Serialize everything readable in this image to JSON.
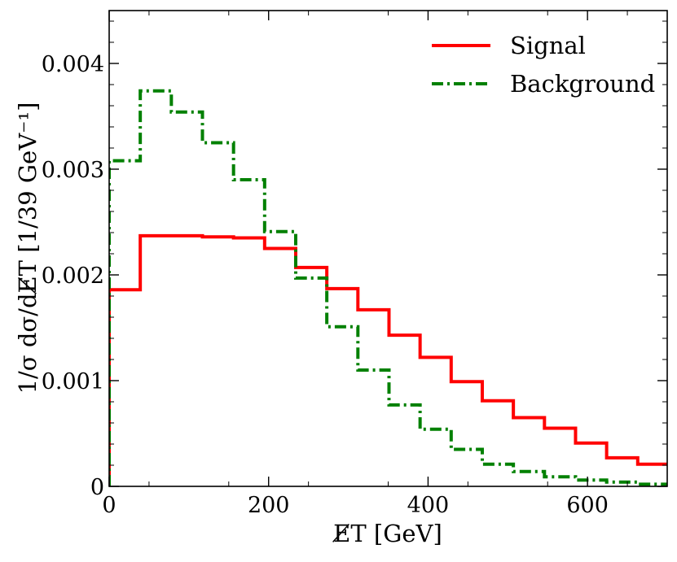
{
  "chart_data": {
    "type": "line",
    "step": true,
    "xlabel": "E̸T [GeV]",
    "ylabel": "1/σ dσ/dE̸T [1/39 GeV⁻¹]",
    "xlim": [
      0,
      700
    ],
    "ylim": [
      0,
      0.0045
    ],
    "xticks": [
      0,
      200,
      400,
      600
    ],
    "xtick_labels": [
      "0",
      "200",
      "400",
      "600"
    ],
    "yticks": [
      0,
      0.001,
      0.002,
      0.003,
      0.004
    ],
    "ytick_labels": [
      "0",
      "0.001",
      "0.002",
      "0.003",
      "0.004"
    ],
    "legend_position": "top-right",
    "bin_edges": [
      0,
      39,
      78,
      117,
      156,
      195,
      234,
      273,
      312,
      351,
      390,
      429,
      468,
      507,
      546,
      585,
      624,
      663,
      702
    ],
    "series": [
      {
        "name": "Signal",
        "color": "#ff0000",
        "style": "solid",
        "values": [
          0.00186,
          0.00237,
          0.00237,
          0.00236,
          0.00235,
          0.00225,
          0.00207,
          0.00187,
          0.00167,
          0.00143,
          0.00122,
          0.00099,
          0.00081,
          0.00065,
          0.00055,
          0.00041,
          0.00027,
          0.00021
        ]
      },
      {
        "name": "Background",
        "color": "#008000",
        "style": "dashdot",
        "values": [
          0.00308,
          0.00374,
          0.00354,
          0.00325,
          0.0029,
          0.00241,
          0.00197,
          0.00151,
          0.0011,
          0.00077,
          0.00054,
          0.00035,
          0.00021,
          0.00014,
          9e-05,
          6e-05,
          4e-05,
          2e-05
        ]
      }
    ]
  }
}
